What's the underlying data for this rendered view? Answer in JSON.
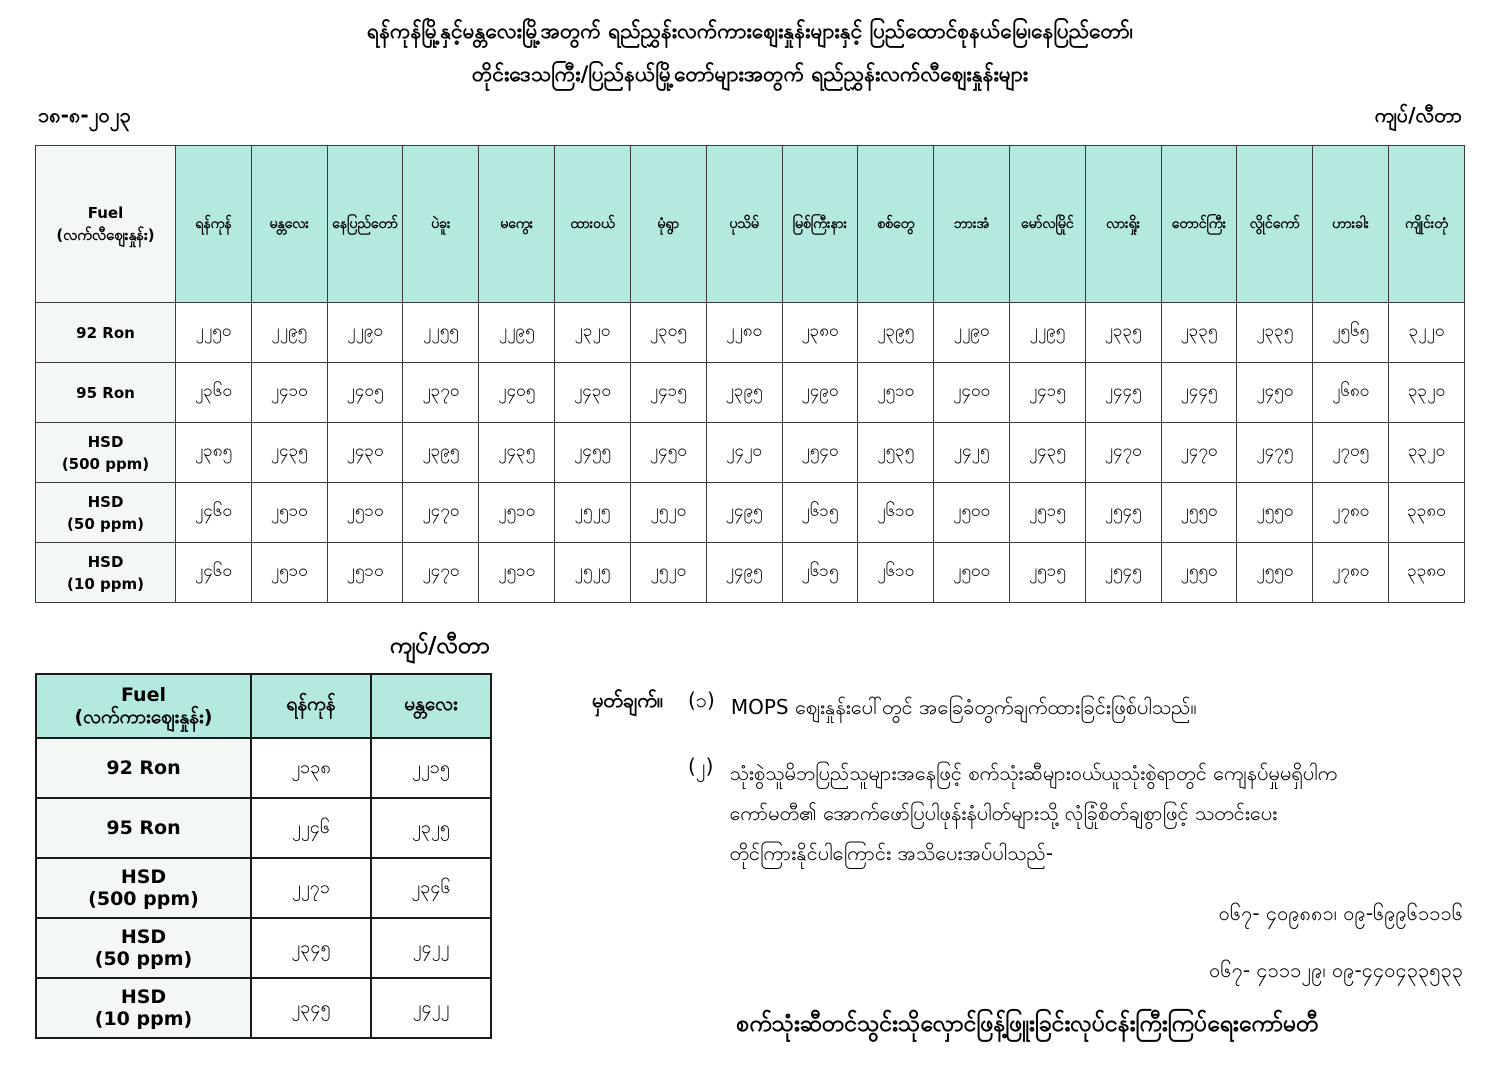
{
  "title": {
    "line1": "ရန်ကုန်မြို့နှင့်မန္တလေးမြို့အတွက် ရည်ညွှန်းလက်ကားဈေးနှုန်းများနှင့် ပြည်ထောင်စုနယ်မြေ၊နေပြည်တော်၊",
    "line2": "တိုင်းဒေသကြီး/ပြည်နယ်မြို့တော်များအတွက် ရည်ညွှန်းလက်လီဈေးနှုန်းများ"
  },
  "date": "၁၈-၈-၂၀၂၃",
  "unit_label_top": "ကျပ်/လီတာ",
  "unit_label_bottom": "ကျပ်/လီတာ",
  "colors": {
    "header_bg": "#b4e9e0",
    "label_cell_bg": "#f4f8f5",
    "border": "#3b3b3b"
  },
  "main_table": {
    "fuel_header": {
      "line1": "Fuel",
      "line2": "(လက်လီဈေးနှုန်း)"
    },
    "cities": [
      "ရန်ကုန်",
      "မန္တလေး",
      "နေပြည်တော်",
      "ပဲခူး",
      "မကွေး",
      "ထားဝယ်",
      "မုံရွာ",
      "ပုသိမ်",
      "မြစ်ကြီးနား",
      "စစ်တွေ",
      "ဘားအံ",
      "မော်လမြိုင်",
      "လားရှိုး",
      "တောင်ကြီး",
      "လွိုင်ကော်",
      "ဟားခါး",
      "ကျိုင်းတုံ"
    ],
    "rows": [
      {
        "fuel": [
          "92 Ron"
        ],
        "values": [
          "၂၂၅၀",
          "၂၂၉၅",
          "၂၂၉၀",
          "၂၂၅၅",
          "၂၂၉၅",
          "၂၃၂၀",
          "၂၃၀၅",
          "၂၂၈၀",
          "၂၃၈၀",
          "၂၃၉၅",
          "၂၂၉၀",
          "၂၂၉၅",
          "၂၃၃၅",
          "၂၃၃၅",
          "၂၃၃၅",
          "၂၅၆၅",
          "၃၂၂၀"
        ]
      },
      {
        "fuel": [
          "95 Ron"
        ],
        "values": [
          "၂၃၆၀",
          "၂၄၁၀",
          "၂၄၀၅",
          "၂၃၇၀",
          "၂၄၀၅",
          "၂၄၃၀",
          "၂၄၁၅",
          "၂၃၉၅",
          "၂၄၉၀",
          "၂၅၁၀",
          "၂၄၀၀",
          "၂၄၁၅",
          "၂၄၄၅",
          "၂၄၄၅",
          "၂၄၅၀",
          "၂၆၈၀",
          "၃၃၂၀"
        ]
      },
      {
        "fuel": [
          "HSD",
          "(500 ppm)"
        ],
        "values": [
          "၂၃၈၅",
          "၂၄၃၅",
          "၂၄၃၀",
          "၂၃၉၅",
          "၂၄၃၅",
          "၂၄၅၅",
          "၂၄၅၀",
          "၂၄၂၀",
          "၂၅၄၀",
          "၂၅၃၅",
          "၂၄၂၅",
          "၂၄၃၅",
          "၂၄၇၀",
          "၂၄၇၀",
          "၂၄၇၅",
          "၂၇၀၅",
          "၃၃၂၀"
        ]
      },
      {
        "fuel": [
          "HSD",
          "(50 ppm)"
        ],
        "values": [
          "၂၄၆၀",
          "၂၅၁၀",
          "၂၅၁၀",
          "၂၄၇၀",
          "၂၅၁၀",
          "၂၅၂၅",
          "၂၅၂၀",
          "၂၄၉၅",
          "၂၆၁၅",
          "၂၆၁၀",
          "၂၅၀၀",
          "၂၅၁၅",
          "၂၅၄၅",
          "၂၅၅၀",
          "၂၅၅၀",
          "၂၇၈၀",
          "၃၃၈၀"
        ]
      },
      {
        "fuel": [
          "HSD",
          "(10 ppm)"
        ],
        "values": [
          "၂၄၆၀",
          "၂၅၁၀",
          "၂၅၁၀",
          "၂၄၇၀",
          "၂၅၁၀",
          "၂၅၂၅",
          "၂၅၂၀",
          "၂၄၉၅",
          "၂၆၁၅",
          "၂၆၁၀",
          "၂၅၀၀",
          "၂၅၁၅",
          "၂၅၄၅",
          "၂၅၅၀",
          "၂၅၅၀",
          "၂၇၈၀",
          "၃၃၈၀"
        ]
      }
    ]
  },
  "wholesale_table": {
    "fuel_header": {
      "line1": "Fuel",
      "line2": "(လက်ကားဈေးနှုန်း)"
    },
    "cities": [
      "ရန်ကုန်",
      "မန္တလေး"
    ],
    "rows": [
      {
        "fuel": [
          "92 Ron"
        ],
        "values": [
          "၂၁၃၈",
          "၂၂၁၅"
        ]
      },
      {
        "fuel": [
          "95 Ron"
        ],
        "values": [
          "၂၂၄၆",
          "၂၃၂၅"
        ]
      },
      {
        "fuel": [
          "HSD",
          "(500 ppm)"
        ],
        "values": [
          "၂၂၇၁",
          "၂၃၄၆"
        ]
      },
      {
        "fuel": [
          "HSD",
          "(50 ppm)"
        ],
        "values": [
          "၂၃၄၅",
          "၂၄၂၂"
        ]
      },
      {
        "fuel": [
          "HSD",
          "(10 ppm)"
        ],
        "values": [
          "၂၃၄၅",
          "၂၄၂၂"
        ]
      }
    ]
  },
  "notes": {
    "label": "မှတ်ချက်။",
    "items": [
      {
        "num": "(၁)",
        "lines": [
          "MOPS ဈေးနှုန်းပေါ်တွင် အခြေခံတွက်ချက်ထားခြင်းဖြစ်ပါသည်။"
        ]
      },
      {
        "num": "(၂)",
        "lines": [
          "သုံးစွဲသူမိဘပြည်သူများအနေဖြင့် စက်သုံးဆီများဝယ်ယူသုံးစွဲရာတွင် ကျေနပ်မှုမရှိပါက",
          "ကော်မတီ၏ အောက်ဖော်ပြပါဖုန်းနံပါတ်များသို့ လုံခြုံစိတ်ချစွာဖြင့် သတင်းပေး",
          "တိုင်ကြားနိုင်ပါကြောင်း အသိပေးအပ်ပါသည်-"
        ]
      }
    ],
    "phone_line1": "၀၆၇- ၄၀၉၈၈၁၊ ၀၉-၆၉၉၆၁၁၁၆",
    "phone_line2": "၀၆၇- ၄၁၁၁၂၉၊ ၀၉-၄၄၀၄၃၃၅၃၃",
    "committee": "စက်သုံးဆီတင်သွင်းသိုလှောင်ဖြန့်ဖြူးခြင်းလုပ်ငန်းကြီးကြပ်ရေးကော်မတီ"
  }
}
